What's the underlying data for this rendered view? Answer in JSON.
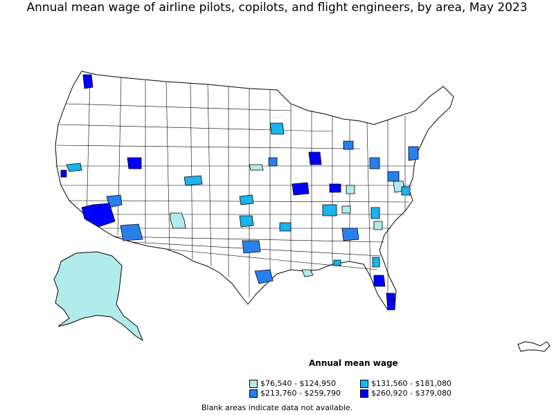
{
  "title": "Annual mean wage of airline pilots, copilots, and flight engineers, by area, May 2023",
  "legend": {
    "title": "Annual mean wage",
    "items": [
      {
        "label": "$76,540 - $124,950",
        "color": "#b2ebeb"
      },
      {
        "label": "$131,560 - $181,080",
        "color": "#1ab4ef"
      },
      {
        "label": "$213,760 - $259,790",
        "color": "#2a7fee"
      },
      {
        "label": "$260,920 - $379,080",
        "color": "#0000ff"
      }
    ]
  },
  "footnote": "Blank areas indicate data not available."
}
